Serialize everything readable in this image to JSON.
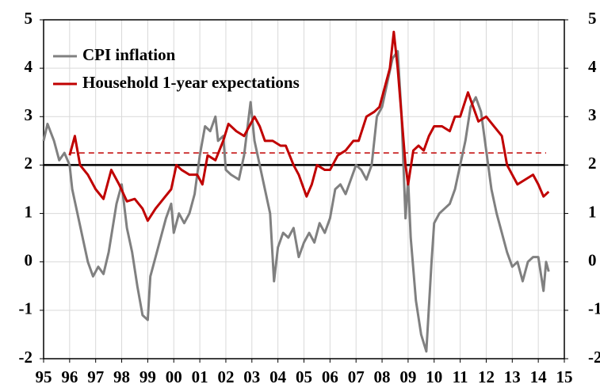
{
  "chart_data": {
    "type": "line",
    "xlim": [
      1995,
      2015
    ],
    "xticks": [
      {
        "value": 1995,
        "label": "95"
      },
      {
        "value": 1996,
        "label": "96"
      },
      {
        "value": 1997,
        "label": "97"
      },
      {
        "value": 1998,
        "label": "98"
      },
      {
        "value": 1999,
        "label": "99"
      },
      {
        "value": 2000,
        "label": "00"
      },
      {
        "value": 2001,
        "label": "01"
      },
      {
        "value": 2002,
        "label": "02"
      },
      {
        "value": 2003,
        "label": "03"
      },
      {
        "value": 2004,
        "label": "04"
      },
      {
        "value": 2005,
        "label": "05"
      },
      {
        "value": 2006,
        "label": "06"
      },
      {
        "value": 2007,
        "label": "07"
      },
      {
        "value": 2008,
        "label": "08"
      },
      {
        "value": 2009,
        "label": "09"
      },
      {
        "value": 2010,
        "label": "10"
      },
      {
        "value": 2011,
        "label": "11"
      },
      {
        "value": 2012,
        "label": "12"
      },
      {
        "value": 2013,
        "label": "13"
      },
      {
        "value": 2014,
        "label": "14"
      },
      {
        "value": 2015,
        "label": "15"
      }
    ],
    "ylim": [
      -2,
      5
    ],
    "yticks": [
      -2,
      -1,
      0,
      1,
      2,
      3,
      4,
      5
    ],
    "y2lim": [
      -2,
      5
    ],
    "y2ticks": [
      -2,
      -1,
      0,
      1,
      2,
      3,
      4,
      5
    ],
    "grid": true,
    "legend": "upper left",
    "reference_lines": [
      {
        "value": 2,
        "color": "#000000",
        "style": "solid"
      },
      {
        "value": 2.25,
        "xrange": [
          1996,
          2014.3
        ],
        "color": "#c00000",
        "style": "dashed"
      }
    ],
    "series": [
      {
        "name": "CPI inflation",
        "color": "#808080",
        "x": [
          1995.0,
          1995.15,
          1995.4,
          1995.6,
          1995.8,
          1996.0,
          1996.1,
          1996.3,
          1996.5,
          1996.7,
          1996.9,
          1997.1,
          1997.3,
          1997.5,
          1997.8,
          1998.0,
          1998.2,
          1998.4,
          1998.6,
          1998.8,
          1999.0,
          1999.1,
          1999.3,
          1999.5,
          1999.7,
          1999.9,
          2000.0,
          2000.2,
          2000.4,
          2000.6,
          2000.8,
          2001.0,
          2001.2,
          2001.4,
          2001.6,
          2001.7,
          2001.9,
          2002.0,
          2002.2,
          2002.5,
          2002.7,
          2002.95,
          2003.1,
          2003.3,
          2003.5,
          2003.7,
          2003.85,
          2004.0,
          2004.2,
          2004.4,
          2004.6,
          2004.8,
          2005.0,
          2005.2,
          2005.4,
          2005.6,
          2005.8,
          2006.0,
          2006.2,
          2006.4,
          2006.6,
          2006.8,
          2007.0,
          2007.2,
          2007.4,
          2007.6,
          2007.8,
          2008.0,
          2008.2,
          2008.4,
          2008.6,
          2008.75,
          2008.9,
          2009.0,
          2009.1,
          2009.3,
          2009.5,
          2009.7,
          2009.9,
          2010.0,
          2010.2,
          2010.4,
          2010.6,
          2010.8,
          2011.0,
          2011.2,
          2011.4,
          2011.6,
          2011.8,
          2012.0,
          2012.2,
          2012.4,
          2012.6,
          2012.8,
          2013.0,
          2013.2,
          2013.4,
          2013.6,
          2013.8,
          2014.0,
          2014.2,
          2014.3,
          2014.4
        ],
        "values": [
          2.5,
          2.85,
          2.5,
          2.1,
          2.25,
          2.0,
          1.5,
          1.0,
          0.5,
          0.0,
          -0.3,
          -0.1,
          -0.25,
          0.2,
          1.2,
          1.6,
          0.7,
          0.2,
          -0.5,
          -1.1,
          -1.2,
          -0.3,
          0.1,
          0.5,
          0.9,
          1.2,
          0.6,
          1.0,
          0.8,
          1.0,
          1.4,
          2.2,
          2.8,
          2.7,
          3.0,
          2.5,
          2.6,
          1.9,
          1.8,
          1.7,
          2.2,
          3.3,
          2.5,
          2.0,
          1.5,
          1.0,
          -0.4,
          0.3,
          0.6,
          0.5,
          0.7,
          0.1,
          0.4,
          0.6,
          0.4,
          0.8,
          0.6,
          0.9,
          1.5,
          1.6,
          1.4,
          1.7,
          2.0,
          1.9,
          1.7,
          2.0,
          3.0,
          3.2,
          3.7,
          4.2,
          4.35,
          3.0,
          0.9,
          1.7,
          0.5,
          -0.8,
          -1.5,
          -1.85,
          0.0,
          0.8,
          1.0,
          1.1,
          1.2,
          1.5,
          2.0,
          2.5,
          3.2,
          3.4,
          3.1,
          2.3,
          1.5,
          1.0,
          0.6,
          0.2,
          -0.1,
          0.0,
          -0.4,
          0.0,
          0.1,
          0.1,
          -0.6,
          0.0,
          -0.2
        ]
      },
      {
        "name": "Household 1-year expectations",
        "color": "#c00000",
        "x": [
          1996.0,
          1996.2,
          1996.4,
          1996.7,
          1997.0,
          1997.3,
          1997.6,
          1997.9,
          1998.2,
          1998.5,
          1998.8,
          1999.0,
          1999.3,
          1999.6,
          1999.9,
          2000.1,
          2000.3,
          2000.6,
          2000.9,
          2001.1,
          2001.3,
          2001.6,
          2001.9,
          2002.1,
          2002.4,
          2002.7,
          2002.9,
          2003.1,
          2003.3,
          2003.5,
          2003.8,
          2004.1,
          2004.3,
          2004.6,
          2004.8,
          2005.1,
          2005.3,
          2005.5,
          2005.8,
          2006.0,
          2006.3,
          2006.6,
          2006.9,
          2007.1,
          2007.4,
          2007.7,
          2007.9,
          2008.1,
          2008.3,
          2008.45,
          2008.6,
          2008.75,
          2008.9,
          2009.0,
          2009.2,
          2009.4,
          2009.6,
          2009.8,
          2010.0,
          2010.3,
          2010.6,
          2010.8,
          2011.0,
          2011.3,
          2011.5,
          2011.7,
          2012.0,
          2012.3,
          2012.6,
          2012.8,
          2013.0,
          2013.2,
          2013.5,
          2013.8,
          2014.0,
          2014.2,
          2014.4
        ],
        "values": [
          2.2,
          2.6,
          2.0,
          1.8,
          1.5,
          1.3,
          1.9,
          1.6,
          1.25,
          1.3,
          1.1,
          0.85,
          1.1,
          1.3,
          1.5,
          2.0,
          1.9,
          1.8,
          1.8,
          1.6,
          2.2,
          2.1,
          2.5,
          2.85,
          2.7,
          2.6,
          2.8,
          3.0,
          2.8,
          2.5,
          2.5,
          2.4,
          2.4,
          2.0,
          1.8,
          1.35,
          1.6,
          2.0,
          1.9,
          1.9,
          2.2,
          2.3,
          2.5,
          2.5,
          3.0,
          3.1,
          3.2,
          3.6,
          4.0,
          4.75,
          4.0,
          3.0,
          2.0,
          1.6,
          2.3,
          2.4,
          2.3,
          2.6,
          2.8,
          2.8,
          2.7,
          3.0,
          3.0,
          3.5,
          3.2,
          2.9,
          3.0,
          2.8,
          2.6,
          2.0,
          1.8,
          1.6,
          1.7,
          1.8,
          1.6,
          1.35,
          1.45
        ]
      }
    ]
  }
}
